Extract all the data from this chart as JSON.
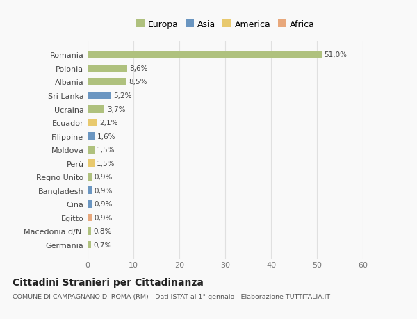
{
  "categories": [
    "Germania",
    "Macedonia d/N.",
    "Egitto",
    "Cina",
    "Bangladesh",
    "Regno Unito",
    "Perù",
    "Moldova",
    "Filippine",
    "Ecuador",
    "Ucraina",
    "Sri Lanka",
    "Albania",
    "Polonia",
    "Romania"
  ],
  "values": [
    0.7,
    0.8,
    0.9,
    0.9,
    0.9,
    0.9,
    1.5,
    1.5,
    1.6,
    2.1,
    3.7,
    5.2,
    8.5,
    8.6,
    51.0
  ],
  "labels": [
    "0,7%",
    "0,8%",
    "0,9%",
    "0,9%",
    "0,9%",
    "0,9%",
    "1,5%",
    "1,5%",
    "1,6%",
    "2,1%",
    "3,7%",
    "5,2%",
    "8,5%",
    "8,6%",
    "51,0%"
  ],
  "colors": [
    "#afc17e",
    "#afc17e",
    "#e8a87c",
    "#6b96c1",
    "#6b96c1",
    "#afc17e",
    "#e8c96e",
    "#afc17e",
    "#6b96c1",
    "#e8c96e",
    "#afc17e",
    "#6b96c1",
    "#afc17e",
    "#afc17e",
    "#afc17e"
  ],
  "continent_colors": {
    "Europa": "#afc17e",
    "Asia": "#6b96c1",
    "America": "#e8c96e",
    "Africa": "#e8a87c"
  },
  "title": "Cittadini Stranieri per Cittadinanza",
  "subtitle": "COMUNE DI CAMPAGNANO DI ROMA (RM) - Dati ISTAT al 1° gennaio - Elaborazione TUTTITALIA.IT",
  "xlim": [
    0,
    60
  ],
  "xticks": [
    0,
    10,
    20,
    30,
    40,
    50,
    60
  ],
  "background_color": "#f9f9f9",
  "grid_color": "#e0e0e0",
  "bar_height": 0.55
}
